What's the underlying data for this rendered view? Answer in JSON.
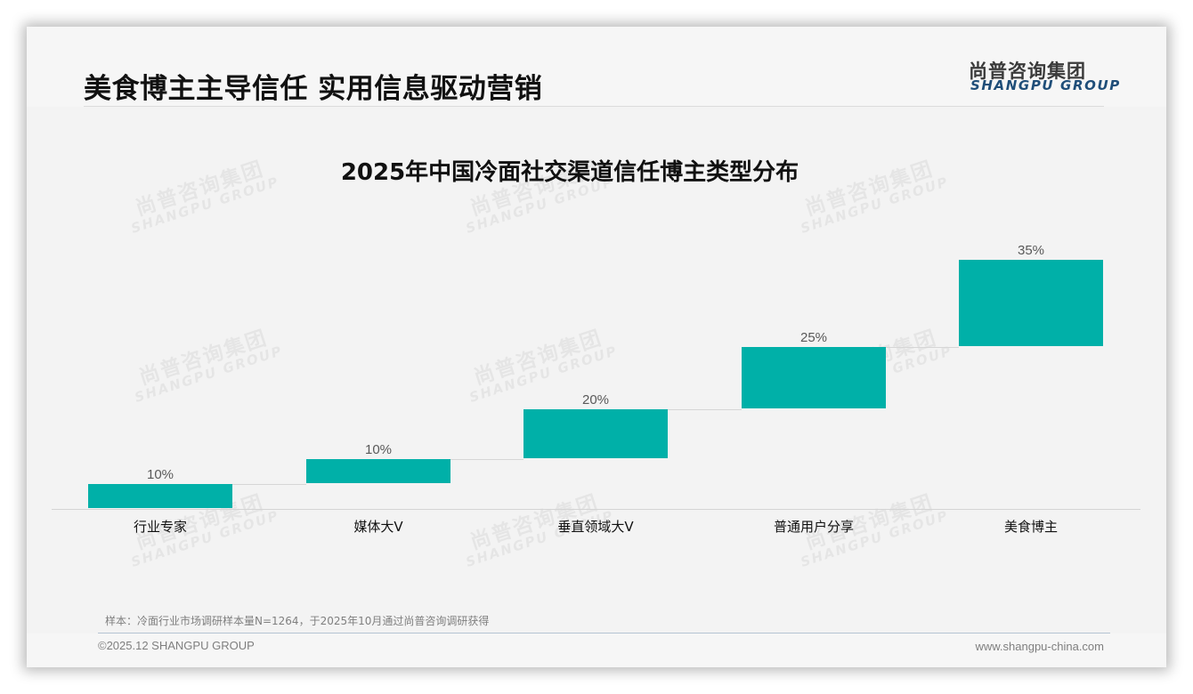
{
  "header": {
    "title": "美食博主主导信任 实用信息驱动营销",
    "logo_cn": "尚普咨询集团",
    "logo_en": "SHANGPU GROUP"
  },
  "watermark": {
    "cn": "尚普咨询集团",
    "en": "SHANGPU GROUP"
  },
  "colors": {
    "bar": "#00b0a8",
    "logo_en": "#1f4e79"
  },
  "chart_data": {
    "type": "bar",
    "subtype": "waterfall",
    "title": "2025年中国冷面社交渠道信任博主类型分布",
    "xlabel": "",
    "ylabel": "",
    "categories": [
      "行业专家",
      "媒体大V",
      "垂直领域大V",
      "普通用户分享",
      "美食博主"
    ],
    "values": [
      10,
      10,
      20,
      25,
      35
    ],
    "value_labels": [
      "10%",
      "10%",
      "20%",
      "25%",
      "35%"
    ],
    "cumulative_start": [
      0,
      10,
      20,
      40,
      65
    ],
    "cumulative_end": [
      10,
      20,
      40,
      65,
      100
    ],
    "ylim": [
      0,
      100
    ],
    "grid": false,
    "legend": null,
    "axis_visible": false
  },
  "footer": {
    "note": "样本：冷面行业市场调研样本量N=1264，于2025年10月通过尚普咨询调研获得",
    "copyright": "©2025.12 SHANGPU GROUP",
    "url": "www.shangpu-china.com"
  }
}
